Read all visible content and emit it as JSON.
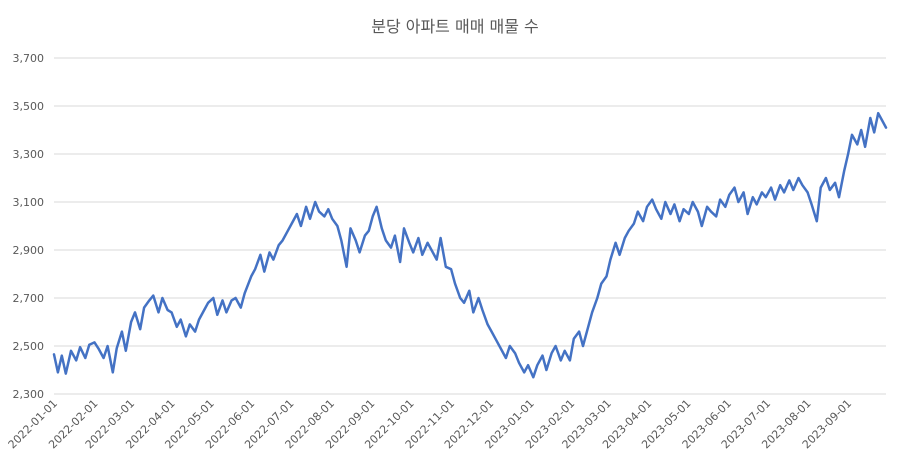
{
  "chart_data": {
    "type": "line",
    "title": "분당 아파트 매매 매물 수",
    "xlabel": "",
    "ylabel": "",
    "ylim": [
      2300,
      3700
    ],
    "yticks": [
      2300,
      2500,
      2700,
      2900,
      3100,
      3300,
      3500,
      3700
    ],
    "ytick_labels": [
      "2,300",
      "2,500",
      "2,700",
      "2,900",
      "3,100",
      "3,300",
      "3,500",
      "3,700"
    ],
    "xticks": [
      "2022-01-01",
      "2022-02-01",
      "2022-03-01",
      "2022-04-01",
      "2022-05-01",
      "2022-06-01",
      "2022-07-01",
      "2022-08-01",
      "2022-09-01",
      "2022-10-01",
      "2022-11-01",
      "2022-12-01",
      "2023-01-01",
      "2023-02-01",
      "2023-03-01",
      "2023-04-01",
      "2023-05-01",
      "2023-06-01",
      "2023-07-01",
      "2023-08-01",
      "2023-09-01"
    ],
    "xlim": [
      "2022-01-01",
      "2023-09-30"
    ],
    "grid": true,
    "line_color": "#4472c4",
    "series": [
      {
        "points": [
          [
            "2022-01-01",
            2465
          ],
          [
            "2022-01-04",
            2390
          ],
          [
            "2022-01-07",
            2460
          ],
          [
            "2022-01-10",
            2385
          ],
          [
            "2022-01-14",
            2480
          ],
          [
            "2022-01-18",
            2440
          ],
          [
            "2022-01-21",
            2495
          ],
          [
            "2022-01-25",
            2450
          ],
          [
            "2022-01-28",
            2505
          ],
          [
            "2022-02-01",
            2515
          ],
          [
            "2022-02-04",
            2490
          ],
          [
            "2022-02-08",
            2450
          ],
          [
            "2022-02-11",
            2500
          ],
          [
            "2022-02-15",
            2390
          ],
          [
            "2022-02-18",
            2490
          ],
          [
            "2022-02-22",
            2560
          ],
          [
            "2022-02-25",
            2480
          ],
          [
            "2022-03-01",
            2600
          ],
          [
            "2022-03-04",
            2640
          ],
          [
            "2022-03-08",
            2570
          ],
          [
            "2022-03-11",
            2660
          ],
          [
            "2022-03-15",
            2690
          ],
          [
            "2022-03-18",
            2710
          ],
          [
            "2022-03-22",
            2640
          ],
          [
            "2022-03-25",
            2700
          ],
          [
            "2022-03-29",
            2650
          ],
          [
            "2022-04-01",
            2640
          ],
          [
            "2022-04-05",
            2580
          ],
          [
            "2022-04-08",
            2610
          ],
          [
            "2022-04-12",
            2540
          ],
          [
            "2022-04-15",
            2590
          ],
          [
            "2022-04-19",
            2560
          ],
          [
            "2022-04-22",
            2610
          ],
          [
            "2022-04-26",
            2650
          ],
          [
            "2022-04-29",
            2680
          ],
          [
            "2022-05-03",
            2700
          ],
          [
            "2022-05-06",
            2630
          ],
          [
            "2022-05-10",
            2690
          ],
          [
            "2022-05-13",
            2640
          ],
          [
            "2022-05-17",
            2690
          ],
          [
            "2022-05-20",
            2700
          ],
          [
            "2022-05-24",
            2660
          ],
          [
            "2022-05-27",
            2720
          ],
          [
            "2022-06-01",
            2790
          ],
          [
            "2022-06-04",
            2820
          ],
          [
            "2022-06-08",
            2880
          ],
          [
            "2022-06-11",
            2810
          ],
          [
            "2022-06-15",
            2890
          ],
          [
            "2022-06-18",
            2860
          ],
          [
            "2022-06-22",
            2920
          ],
          [
            "2022-06-25",
            2940
          ],
          [
            "2022-06-29",
            2980
          ],
          [
            "2022-07-02",
            3010
          ],
          [
            "2022-07-06",
            3050
          ],
          [
            "2022-07-09",
            3000
          ],
          [
            "2022-07-13",
            3080
          ],
          [
            "2022-07-16",
            3030
          ],
          [
            "2022-07-20",
            3100
          ],
          [
            "2022-07-23",
            3060
          ],
          [
            "2022-07-27",
            3040
          ],
          [
            "2022-07-30",
            3070
          ],
          [
            "2022-08-02",
            3030
          ],
          [
            "2022-08-06",
            3000
          ],
          [
            "2022-08-09",
            2940
          ],
          [
            "2022-08-13",
            2830
          ],
          [
            "2022-08-16",
            2990
          ],
          [
            "2022-08-20",
            2940
          ],
          [
            "2022-08-23",
            2890
          ],
          [
            "2022-08-27",
            2960
          ],
          [
            "2022-08-30",
            2980
          ],
          [
            "2022-09-02",
            3040
          ],
          [
            "2022-09-05",
            3080
          ],
          [
            "2022-09-09",
            2990
          ],
          [
            "2022-09-12",
            2940
          ],
          [
            "2022-09-16",
            2910
          ],
          [
            "2022-09-19",
            2960
          ],
          [
            "2022-09-23",
            2850
          ],
          [
            "2022-09-26",
            2990
          ],
          [
            "2022-09-30",
            2930
          ],
          [
            "2022-10-03",
            2890
          ],
          [
            "2022-10-07",
            2950
          ],
          [
            "2022-10-10",
            2880
          ],
          [
            "2022-10-14",
            2930
          ],
          [
            "2022-10-17",
            2900
          ],
          [
            "2022-10-21",
            2860
          ],
          [
            "2022-10-24",
            2950
          ],
          [
            "2022-10-28",
            2830
          ],
          [
            "2022-11-01",
            2820
          ],
          [
            "2022-11-04",
            2760
          ],
          [
            "2022-11-08",
            2700
          ],
          [
            "2022-11-11",
            2680
          ],
          [
            "2022-11-15",
            2730
          ],
          [
            "2022-11-18",
            2640
          ],
          [
            "2022-11-22",
            2700
          ],
          [
            "2022-11-25",
            2650
          ],
          [
            "2022-11-29",
            2590
          ],
          [
            "2022-12-02",
            2560
          ],
          [
            "2022-12-06",
            2520
          ],
          [
            "2022-12-09",
            2490
          ],
          [
            "2022-12-13",
            2450
          ],
          [
            "2022-12-16",
            2500
          ],
          [
            "2022-12-20",
            2470
          ],
          [
            "2022-12-23",
            2430
          ],
          [
            "2022-12-27",
            2390
          ],
          [
            "2022-12-30",
            2420
          ],
          [
            "2023-01-03",
            2370
          ],
          [
            "2023-01-06",
            2420
          ],
          [
            "2023-01-10",
            2460
          ],
          [
            "2023-01-13",
            2400
          ],
          [
            "2023-01-17",
            2470
          ],
          [
            "2023-01-20",
            2500
          ],
          [
            "2023-01-24",
            2440
          ],
          [
            "2023-01-27",
            2480
          ],
          [
            "2023-01-31",
            2440
          ],
          [
            "2023-02-03",
            2530
          ],
          [
            "2023-02-07",
            2560
          ],
          [
            "2023-02-10",
            2500
          ],
          [
            "2023-02-14",
            2580
          ],
          [
            "2023-02-17",
            2640
          ],
          [
            "2023-02-21",
            2700
          ],
          [
            "2023-02-24",
            2760
          ],
          [
            "2023-02-28",
            2790
          ],
          [
            "2023-03-03",
            2860
          ],
          [
            "2023-03-07",
            2930
          ],
          [
            "2023-03-10",
            2880
          ],
          [
            "2023-03-14",
            2950
          ],
          [
            "2023-03-17",
            2980
          ],
          [
            "2023-03-21",
            3010
          ],
          [
            "2023-03-24",
            3060
          ],
          [
            "2023-03-28",
            3020
          ],
          [
            "2023-03-31",
            3080
          ],
          [
            "2023-04-04",
            3110
          ],
          [
            "2023-04-07",
            3070
          ],
          [
            "2023-04-11",
            3030
          ],
          [
            "2023-04-14",
            3100
          ],
          [
            "2023-04-18",
            3050
          ],
          [
            "2023-04-21",
            3090
          ],
          [
            "2023-04-25",
            3020
          ],
          [
            "2023-04-28",
            3070
          ],
          [
            "2023-05-02",
            3050
          ],
          [
            "2023-05-05",
            3100
          ],
          [
            "2023-05-09",
            3060
          ],
          [
            "2023-05-12",
            3000
          ],
          [
            "2023-05-16",
            3080
          ],
          [
            "2023-05-19",
            3060
          ],
          [
            "2023-05-23",
            3040
          ],
          [
            "2023-05-26",
            3110
          ],
          [
            "2023-05-30",
            3080
          ],
          [
            "2023-06-02",
            3130
          ],
          [
            "2023-06-06",
            3160
          ],
          [
            "2023-06-09",
            3100
          ],
          [
            "2023-06-13",
            3140
          ],
          [
            "2023-06-16",
            3050
          ],
          [
            "2023-06-20",
            3120
          ],
          [
            "2023-06-23",
            3090
          ],
          [
            "2023-06-27",
            3140
          ],
          [
            "2023-06-30",
            3120
          ],
          [
            "2023-07-04",
            3160
          ],
          [
            "2023-07-07",
            3110
          ],
          [
            "2023-07-11",
            3170
          ],
          [
            "2023-07-14",
            3140
          ],
          [
            "2023-07-18",
            3190
          ],
          [
            "2023-07-21",
            3150
          ],
          [
            "2023-07-25",
            3200
          ],
          [
            "2023-07-28",
            3170
          ],
          [
            "2023-08-01",
            3140
          ],
          [
            "2023-08-04",
            3090
          ],
          [
            "2023-08-08",
            3020
          ],
          [
            "2023-08-11",
            3160
          ],
          [
            "2023-08-15",
            3200
          ],
          [
            "2023-08-18",
            3150
          ],
          [
            "2023-08-22",
            3180
          ],
          [
            "2023-08-25",
            3120
          ],
          [
            "2023-08-29",
            3230
          ],
          [
            "2023-09-01",
            3300
          ],
          [
            "2023-09-04",
            3380
          ],
          [
            "2023-09-08",
            3340
          ],
          [
            "2023-09-11",
            3400
          ],
          [
            "2023-09-14",
            3330
          ],
          [
            "2023-09-18",
            3450
          ],
          [
            "2023-09-21",
            3390
          ],
          [
            "2023-09-24",
            3470
          ],
          [
            "2023-09-27",
            3440
          ],
          [
            "2023-09-30",
            3410
          ]
        ]
      }
    ]
  }
}
